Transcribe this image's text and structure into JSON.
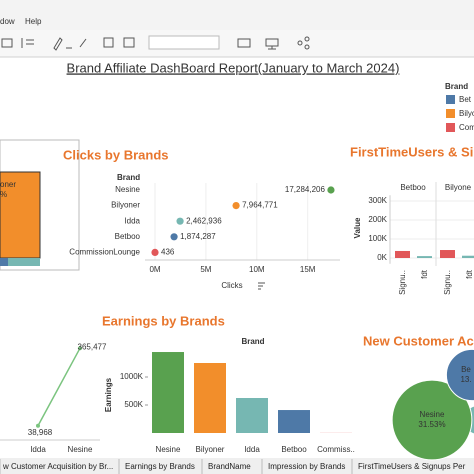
{
  "menu": [
    "dow",
    "Help"
  ],
  "dashboard_title": "Brand Affiliate DashBoard Report(January to March 2024)",
  "legend": {
    "title": "Brand",
    "items": [
      {
        "label": "Bet",
        "color": "#4e79a7"
      },
      {
        "label": "Bilyon",
        "color": "#f28e2b"
      },
      {
        "label": "Commi",
        "color": "#e15759"
      }
    ]
  },
  "partial_panel": {
    "labels": [
      "oner",
      "%"
    ]
  },
  "chart_data": [
    {
      "type": "dot",
      "title": "Clicks by Brands",
      "row_header": "Brand",
      "x_label": "Clicks",
      "categories": [
        "Nesine",
        "Bilyoner",
        "Idda",
        "Betboo",
        "CommissionLounge"
      ],
      "values": [
        17284206,
        7964771,
        2462936,
        1874287,
        436
      ],
      "value_labels": [
        "17,284,206",
        "7,964,771",
        "2,462,936",
        "1,874,287",
        "436"
      ],
      "colors": [
        "#59a14f",
        "#f28e2b",
        "#76b7b2",
        "#4e79a7",
        "#e15759"
      ],
      "xlim": [
        -1000000,
        19000000
      ],
      "xticks": [
        {
          "value": 0,
          "label": "0M"
        },
        {
          "value": 5000000,
          "label": "5M"
        },
        {
          "value": 10000000,
          "label": "10M"
        },
        {
          "value": 15000000,
          "label": "15M"
        }
      ],
      "grid": true
    },
    {
      "type": "grouped_bar",
      "title": "FirstTimeUsers & Si",
      "y_label": "Value",
      "categories": [
        "Signu..",
        "fdt"
      ],
      "colors": [
        "#e15759",
        "#76b7b2"
      ],
      "groups": [
        {
          "name": "Betboo",
          "values": [
            37000,
            10000
          ]
        },
        {
          "name": "Bilyone",
          "values": [
            42000,
            12000
          ]
        }
      ],
      "ylim": [
        -30000,
        330000
      ],
      "yticks": [
        {
          "value": 0,
          "label": "0K"
        },
        {
          "value": 100000,
          "label": "100K"
        },
        {
          "value": 200000,
          "label": "200K"
        },
        {
          "value": 300000,
          "label": "300K"
        }
      ],
      "grid": true
    },
    {
      "type": "bar",
      "title": "Earnings by Brands",
      "col_header": "Brand",
      "y_label": "Earnings",
      "categories": [
        "Nesine",
        "Bilyoner",
        "Idda",
        "Betboo",
        "Commiss.."
      ],
      "values": [
        1446000,
        1250000,
        625000,
        410000,
        2000
      ],
      "colors": [
        "#59a14f",
        "#f28e2b",
        "#76b7b2",
        "#4e79a7",
        "#e15759"
      ],
      "ylim": [
        0,
        1650000
      ],
      "yticks": [
        {
          "value": 500000,
          "label": "500K"
        },
        {
          "value": 1000000,
          "label": "1000K"
        }
      ]
    },
    {
      "type": "line",
      "categories": [
        "Idda",
        "Nesine"
      ],
      "values": [
        38968,
        365477
      ],
      "value_labels": [
        "38,968",
        "365,477"
      ],
      "color": "#7bc47f",
      "ylim": [
        0,
        400000
      ]
    },
    {
      "type": "bubble",
      "title": "New Customer Ac",
      "labels": [
        "Nesine",
        "Be"
      ],
      "values": [
        31.53,
        13
      ],
      "value_labels": [
        "31.53%",
        "13."
      ],
      "colors": [
        "#59a14f",
        "#4e79a7"
      ]
    }
  ],
  "tabs": [
    "w Customer Acquisition by Br...",
    "Earnings by Brands",
    "BrandName",
    "Impression by Brands",
    "FirstTimeUsers & Signups Per"
  ]
}
